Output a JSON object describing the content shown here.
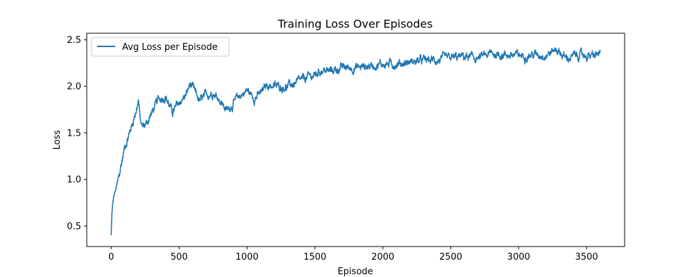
{
  "chart_data": {
    "type": "line",
    "title": "Training Loss Over Episodes",
    "xlabel": "Episode",
    "ylabel": "Loss",
    "xlim": [
      -180,
      3780
    ],
    "ylim": [
      0.28,
      2.57
    ],
    "xticks": [
      0,
      500,
      1000,
      1500,
      2000,
      2500,
      3000,
      3500
    ],
    "xtick_labels": [
      "0",
      "500",
      "1000",
      "1500",
      "2000",
      "2500",
      "3000",
      "3500"
    ],
    "yticks": [
      0.5,
      1.0,
      1.5,
      2.0,
      2.5
    ],
    "ytick_labels": [
      "0.5",
      "1.0",
      "1.5",
      "2.0",
      "2.5"
    ],
    "grid": false,
    "legend_position": "upper-left",
    "series": [
      {
        "name": "Avg Loss per Episode",
        "color": "#1f77b4",
        "noise_amplitude": 0.05,
        "x": [
          0,
          5,
          10,
          20,
          40,
          60,
          80,
          100,
          130,
          160,
          190,
          200,
          215,
          230,
          260,
          300,
          350,
          400,
          450,
          500,
          550,
          580,
          600,
          650,
          700,
          750,
          800,
          850,
          900,
          950,
          1000,
          1050,
          1100,
          1150,
          1200,
          1300,
          1400,
          1450,
          1500,
          1550,
          1600,
          1700,
          1800,
          1900,
          2000,
          2100,
          2200,
          2300,
          2400,
          2500,
          2600,
          2700,
          2800,
          2900,
          3000,
          3100,
          3200,
          3280,
          3350,
          3450,
          3550,
          3600
        ],
        "y": [
          0.4,
          0.62,
          0.72,
          0.82,
          0.92,
          1.05,
          1.2,
          1.35,
          1.48,
          1.62,
          1.78,
          1.86,
          1.62,
          1.56,
          1.6,
          1.72,
          1.86,
          1.9,
          1.72,
          1.82,
          1.9,
          2.02,
          1.98,
          1.84,
          1.9,
          1.94,
          1.86,
          1.74,
          1.82,
          1.9,
          1.96,
          1.88,
          1.92,
          2.02,
          2.0,
          2.0,
          2.06,
          2.1,
          2.12,
          2.18,
          2.16,
          2.2,
          2.2,
          2.22,
          2.24,
          2.24,
          2.26,
          2.28,
          2.28,
          2.3,
          2.32,
          2.3,
          2.35,
          2.34,
          2.33,
          2.34,
          2.34,
          2.4,
          2.3,
          2.34,
          2.32,
          2.36
        ]
      }
    ]
  }
}
